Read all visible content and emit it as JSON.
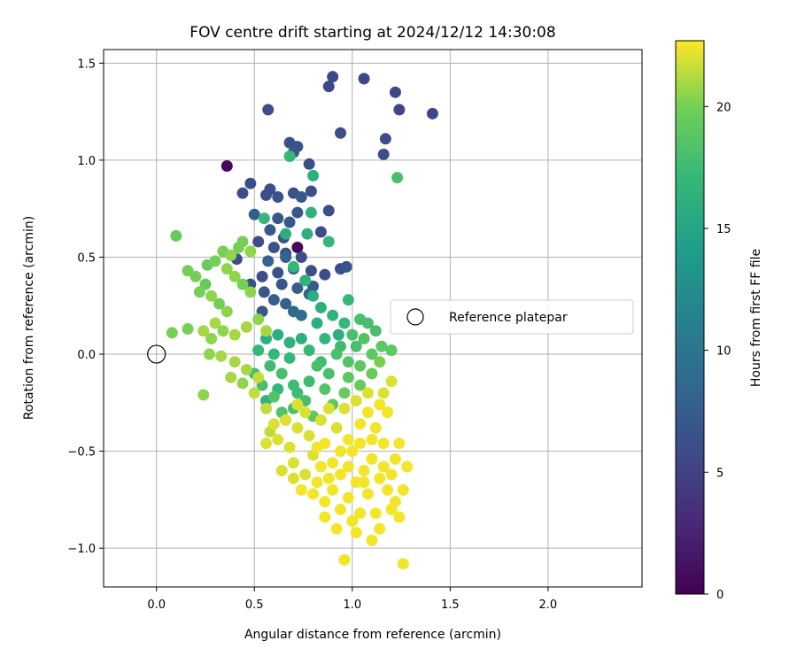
{
  "chart_data": {
    "type": "scatter",
    "title": "FOV centre drift starting at 2024/12/12 14:30:08",
    "xlabel": "Angular distance from reference (arcmin)",
    "ylabel": "Rotation from reference (arcmin)",
    "xlim": [
      -0.27,
      2.48
    ],
    "ylim": [
      -1.2,
      1.57
    ],
    "x_ticks": [
      0.0,
      0.5,
      1.0,
      1.5,
      2.0
    ],
    "x_tick_labels": [
      "0.0",
      "0.5",
      "1.0",
      "1.5",
      "2.0"
    ],
    "y_ticks": [
      -1.0,
      -0.5,
      0.0,
      0.5,
      1.0,
      1.5
    ],
    "y_tick_labels": [
      "−1.0",
      "−0.5",
      "0.0",
      "0.5",
      "1.0",
      "1.5"
    ],
    "grid": true,
    "colormap": "viridis",
    "colorbar": {
      "label": "Hours from first FF file",
      "range": [
        0,
        22.7
      ],
      "ticks": [
        0,
        5,
        10,
        15,
        20
      ],
      "tick_labels": [
        "0",
        "5",
        "10",
        "15",
        "20"
      ]
    },
    "legend": {
      "placement": "center-right",
      "entries": [
        {
          "label": "Reference platepar",
          "marker": "open-circle"
        }
      ]
    },
    "reference_point": {
      "x": 0.0,
      "y": 0.0
    },
    "points": [
      [
        0.36,
        0.97,
        0.5
      ],
      [
        0.72,
        0.55,
        0.5
      ],
      [
        0.9,
        1.43,
        5.5
      ],
      [
        0.88,
        1.38,
        5.5
      ],
      [
        1.06,
        1.42,
        5.5
      ],
      [
        1.22,
        1.35,
        5.5
      ],
      [
        1.24,
        1.26,
        5.5
      ],
      [
        1.41,
        1.24,
        5.5
      ],
      [
        0.57,
        1.26,
        6
      ],
      [
        0.94,
        1.14,
        6
      ],
      [
        1.17,
        1.11,
        6
      ],
      [
        1.16,
        1.03,
        6
      ],
      [
        0.68,
        1.09,
        6.5
      ],
      [
        0.72,
        1.07,
        6.5
      ],
      [
        0.7,
        1.04,
        7
      ],
      [
        0.78,
        0.98,
        6
      ],
      [
        0.48,
        0.88,
        6
      ],
      [
        0.44,
        0.83,
        6
      ],
      [
        0.56,
        0.82,
        6
      ],
      [
        0.58,
        0.85,
        6
      ],
      [
        0.62,
        0.81,
        6.5
      ],
      [
        0.7,
        0.83,
        6.5
      ],
      [
        0.74,
        0.81,
        7
      ],
      [
        0.79,
        0.84,
        6
      ],
      [
        0.88,
        0.74,
        6
      ],
      [
        0.72,
        0.73,
        7
      ],
      [
        0.62,
        0.7,
        7
      ],
      [
        0.5,
        0.72,
        7.5
      ],
      [
        0.68,
        0.68,
        7
      ],
      [
        0.58,
        0.64,
        7
      ],
      [
        0.65,
        0.6,
        7
      ],
      [
        0.84,
        0.63,
        6
      ],
      [
        0.41,
        0.49,
        6
      ],
      [
        0.52,
        0.58,
        6
      ],
      [
        0.6,
        0.55,
        6.5
      ],
      [
        0.66,
        0.52,
        6.5
      ],
      [
        0.74,
        0.5,
        6
      ],
      [
        0.62,
        0.42,
        6.5
      ],
      [
        0.54,
        0.4,
        6
      ],
      [
        0.7,
        0.44,
        7
      ],
      [
        0.79,
        0.43,
        6
      ],
      [
        0.86,
        0.41,
        6
      ],
      [
        0.94,
        0.44,
        6
      ],
      [
        0.97,
        0.45,
        6.5
      ],
      [
        0.48,
        0.36,
        6.5
      ],
      [
        0.55,
        0.32,
        7
      ],
      [
        0.64,
        0.36,
        7
      ],
      [
        0.72,
        0.34,
        7.5
      ],
      [
        0.8,
        0.35,
        7
      ],
      [
        0.6,
        0.28,
        7.5
      ],
      [
        0.66,
        0.26,
        8
      ],
      [
        0.7,
        0.22,
        8.5
      ],
      [
        0.54,
        0.22,
        7
      ],
      [
        0.66,
        0.5,
        8
      ],
      [
        0.57,
        0.48,
        8
      ],
      [
        0.78,
        0.31,
        8
      ],
      [
        0.74,
        0.2,
        9
      ],
      [
        0.8,
        0.92,
        16
      ],
      [
        0.79,
        0.73,
        16.5
      ],
      [
        0.55,
        0.7,
        17
      ],
      [
        0.66,
        0.62,
        16
      ],
      [
        0.77,
        0.62,
        16
      ],
      [
        0.68,
        1.02,
        17
      ],
      [
        1.23,
        0.91,
        18
      ],
      [
        0.88,
        0.58,
        17
      ],
      [
        0.7,
        0.45,
        17
      ],
      [
        0.76,
        0.38,
        16.5
      ],
      [
        0.8,
        0.3,
        16
      ],
      [
        0.84,
        0.24,
        16
      ],
      [
        0.9,
        0.2,
        16.5
      ],
      [
        0.96,
        0.16,
        17
      ],
      [
        0.98,
        0.28,
        17
      ],
      [
        0.93,
        0.1,
        16
      ],
      [
        0.82,
        0.16,
        16
      ],
      [
        0.86,
        0.08,
        17
      ],
      [
        0.74,
        0.08,
        16
      ],
      [
        0.68,
        0.06,
        16.5
      ],
      [
        0.62,
        0.1,
        16
      ],
      [
        0.56,
        0.08,
        16
      ],
      [
        0.6,
        0.0,
        17
      ],
      [
        0.68,
        -0.02,
        17
      ],
      [
        0.78,
        0.02,
        17
      ],
      [
        0.84,
        -0.04,
        17.5
      ],
      [
        0.94,
        0.04,
        17.5
      ],
      [
        1.0,
        0.1,
        18
      ],
      [
        1.04,
        0.18,
        18
      ],
      [
        1.08,
        0.16,
        18
      ],
      [
        1.12,
        0.12,
        18
      ],
      [
        1.02,
        0.04,
        18
      ],
      [
        0.88,
        -0.1,
        18
      ],
      [
        0.78,
        -0.14,
        17.5
      ],
      [
        0.7,
        -0.16,
        17.5
      ],
      [
        0.62,
        -0.18,
        17
      ],
      [
        0.56,
        -0.24,
        16.5
      ],
      [
        0.72,
        -0.2,
        17.5
      ],
      [
        0.82,
        -0.06,
        18
      ],
      [
        0.92,
        0.0,
        18
      ],
      [
        0.98,
        -0.04,
        18.5
      ],
      [
        1.06,
        0.08,
        18.5
      ],
      [
        1.15,
        0.04,
        19
      ],
      [
        1.2,
        0.02,
        19
      ],
      [
        1.1,
        0.0,
        19
      ],
      [
        1.04,
        -0.06,
        19
      ],
      [
        0.98,
        -0.12,
        19
      ],
      [
        0.86,
        -0.18,
        18.5
      ],
      [
        0.76,
        -0.24,
        18
      ],
      [
        0.7,
        -0.28,
        18
      ],
      [
        0.64,
        -0.3,
        18.5
      ],
      [
        0.8,
        -0.32,
        19
      ],
      [
        0.9,
        -0.26,
        19
      ],
      [
        0.96,
        -0.2,
        19.5
      ],
      [
        1.04,
        -0.16,
        19.5
      ],
      [
        1.1,
        -0.1,
        19.5
      ],
      [
        1.14,
        -0.04,
        20
      ],
      [
        0.52,
        0.02,
        17
      ],
      [
        0.58,
        -0.06,
        17.5
      ],
      [
        0.64,
        -0.1,
        18
      ],
      [
        0.5,
        -0.1,
        17.5
      ],
      [
        0.54,
        -0.16,
        18
      ],
      [
        0.6,
        -0.22,
        18.5
      ],
      [
        0.1,
        0.61,
        19.5
      ],
      [
        0.16,
        0.43,
        20
      ],
      [
        0.2,
        0.4,
        20
      ],
      [
        0.25,
        0.36,
        19.5
      ],
      [
        0.22,
        0.32,
        20
      ],
      [
        0.26,
        0.46,
        19.5
      ],
      [
        0.3,
        0.48,
        20
      ],
      [
        0.34,
        0.53,
        20
      ],
      [
        0.38,
        0.51,
        20.5
      ],
      [
        0.42,
        0.55,
        20
      ],
      [
        0.44,
        0.58,
        20
      ],
      [
        0.48,
        0.53,
        20.5
      ],
      [
        0.36,
        0.44,
        20.5
      ],
      [
        0.4,
        0.4,
        20.5
      ],
      [
        0.44,
        0.36,
        20
      ],
      [
        0.48,
        0.32,
        20.5
      ],
      [
        0.28,
        0.3,
        20.5
      ],
      [
        0.32,
        0.26,
        20
      ],
      [
        0.36,
        0.22,
        20.5
      ],
      [
        0.3,
        0.16,
        21
      ],
      [
        0.24,
        0.12,
        21
      ],
      [
        0.28,
        0.08,
        20.5
      ],
      [
        0.34,
        0.12,
        20.5
      ],
      [
        0.4,
        0.1,
        21
      ],
      [
        0.46,
        0.14,
        21
      ],
      [
        0.52,
        0.18,
        20.5
      ],
      [
        0.56,
        0.12,
        21
      ],
      [
        0.08,
        0.11,
        20
      ],
      [
        0.16,
        0.13,
        20
      ],
      [
        0.27,
        0.0,
        20.5
      ],
      [
        0.33,
        -0.01,
        21
      ],
      [
        0.4,
        -0.04,
        21
      ],
      [
        0.46,
        -0.08,
        21
      ],
      [
        0.52,
        -0.12,
        21.5
      ],
      [
        0.44,
        -0.15,
        20.5
      ],
      [
        0.38,
        -0.12,
        21
      ],
      [
        0.24,
        -0.21,
        20.5
      ],
      [
        0.5,
        -0.2,
        21.5
      ],
      [
        0.56,
        -0.28,
        21.5
      ],
      [
        0.58,
        -0.4,
        21.5
      ],
      [
        0.56,
        -0.46,
        22
      ],
      [
        0.62,
        -0.44,
        22
      ],
      [
        0.64,
        -0.6,
        22
      ],
      [
        0.7,
        -0.56,
        22
      ],
      [
        0.68,
        -0.48,
        22
      ],
      [
        0.72,
        -0.38,
        22
      ],
      [
        0.78,
        -0.42,
        22
      ],
      [
        0.8,
        -0.52,
        22
      ],
      [
        0.84,
        -0.58,
        22.5
      ],
      [
        0.88,
        -0.64,
        22.5
      ],
      [
        0.9,
        -0.7,
        22.5
      ],
      [
        0.86,
        -0.76,
        22.5
      ],
      [
        0.94,
        -0.8,
        22.5
      ],
      [
        0.98,
        -0.74,
        22.5
      ],
      [
        1.0,
        -0.86,
        22.5
      ],
      [
        1.04,
        -0.82,
        22.5
      ],
      [
        1.02,
        -0.66,
        22.5
      ],
      [
        1.06,
        -0.6,
        22.5
      ],
      [
        1.1,
        -0.54,
        22.5
      ],
      [
        1.14,
        -0.64,
        22.5
      ],
      [
        1.18,
        -0.7,
        22.5
      ],
      [
        1.22,
        -0.76,
        22.5
      ],
      [
        1.2,
        -0.62,
        22.5
      ],
      [
        1.26,
        -0.7,
        22.5
      ],
      [
        1.22,
        -0.54,
        22.5
      ],
      [
        1.16,
        -0.46,
        22.5
      ],
      [
        1.12,
        -0.38,
        22.5
      ],
      [
        1.08,
        -0.3,
        22.5
      ],
      [
        1.04,
        -0.36,
        22.5
      ],
      [
        0.98,
        -0.44,
        22.5
      ],
      [
        0.94,
        -0.5,
        22.5
      ],
      [
        0.92,
        -0.38,
        22
      ],
      [
        0.96,
        -0.28,
        22
      ],
      [
        1.02,
        -0.24,
        22
      ],
      [
        1.08,
        -0.2,
        22
      ],
      [
        1.14,
        -0.26,
        22.5
      ],
      [
        1.18,
        -0.3,
        22.5
      ],
      [
        1.16,
        -0.2,
        22
      ],
      [
        1.2,
        -0.14,
        22
      ],
      [
        1.24,
        -0.46,
        22.5
      ],
      [
        1.24,
        -0.84,
        22.5
      ],
      [
        1.2,
        -0.8,
        22.5
      ],
      [
        1.12,
        -0.82,
        22.5
      ],
      [
        1.1,
        -0.96,
        22.5
      ],
      [
        1.02,
        -0.92,
        22.5
      ],
      [
        0.96,
        -1.06,
        22.5
      ],
      [
        1.14,
        -0.9,
        22.5
      ],
      [
        1.26,
        -1.08,
        22.5
      ],
      [
        0.84,
        -0.34,
        22
      ],
      [
        0.88,
        -0.28,
        22
      ],
      [
        0.76,
        -0.3,
        22
      ],
      [
        0.72,
        -0.26,
        22
      ],
      [
        0.66,
        -0.34,
        22
      ],
      [
        0.6,
        -0.36,
        22
      ],
      [
        0.7,
        -0.64,
        22
      ],
      [
        0.76,
        -0.62,
        22
      ],
      [
        0.82,
        -0.66,
        22.5
      ],
      [
        0.74,
        -0.7,
        22.5
      ],
      [
        0.8,
        -0.72,
        22.5
      ],
      [
        0.86,
        -0.84,
        22.5
      ],
      [
        0.92,
        -0.9,
        22.5
      ],
      [
        1.08,
        -0.72,
        22.5
      ],
      [
        1.06,
        -0.66,
        22.5
      ],
      [
        1.16,
        -0.58,
        22.5
      ],
      [
        1.28,
        -0.58,
        22.5
      ],
      [
        0.9,
        -0.56,
        22.5
      ],
      [
        0.94,
        -0.62,
        22.5
      ],
      [
        0.98,
        -0.58,
        22.5
      ],
      [
        1.0,
        -0.5,
        22.5
      ],
      [
        1.04,
        -0.46,
        22.5
      ],
      [
        1.1,
        -0.44,
        22.5
      ],
      [
        0.86,
        -0.46,
        22.5
      ],
      [
        0.82,
        -0.48,
        22.5
      ]
    ]
  }
}
